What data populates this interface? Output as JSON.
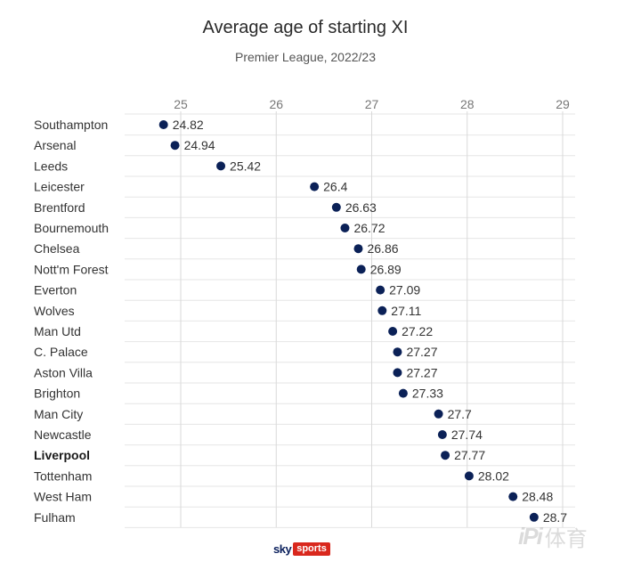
{
  "header": {
    "title": "Average age of starting XI",
    "subtitle": "Premier League, 2022/23"
  },
  "chart_data": {
    "type": "scatter",
    "title": "Average age of starting XI",
    "subtitle": "Premier League, 2022/23",
    "xlabel": "",
    "ylabel": "",
    "xlim": [
      24.7,
      29.1
    ],
    "xticks": [
      25,
      26,
      27,
      28,
      29
    ],
    "grid": true,
    "legend": "none",
    "marker_color": "#0b2157",
    "categories": [
      "Southampton",
      "Arsenal",
      "Leeds",
      "Leicester",
      "Brentford",
      "Bournemouth",
      "Chelsea",
      "Nott'm Forest",
      "Everton",
      "Wolves",
      "Man Utd",
      "C. Palace",
      "Aston Villa",
      "Brighton",
      "Man City",
      "Newcastle",
      "Liverpool",
      "Tottenham",
      "West Ham",
      "Fulham"
    ],
    "values": [
      24.82,
      24.94,
      25.42,
      26.4,
      26.63,
      26.72,
      26.86,
      26.89,
      27.09,
      27.11,
      27.22,
      27.27,
      27.27,
      27.33,
      27.7,
      27.74,
      27.77,
      28.02,
      28.48,
      28.7
    ],
    "highlighted": [
      "Liverpool"
    ]
  },
  "footer": {
    "logo_sky": "sky",
    "logo_sports": "sports",
    "watermark": "体育",
    "watermark_mark": "iPi"
  }
}
